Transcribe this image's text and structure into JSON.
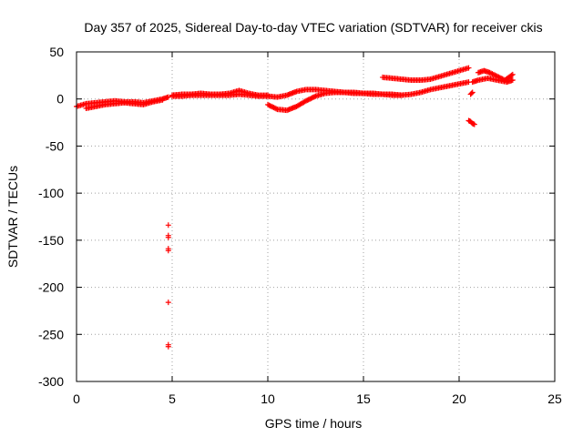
{
  "chart_data": {
    "type": "scatter",
    "title": "Day 357 of 2025, Sidereal Day-to-day VTEC variation (SDTVAR) for receiver ckis",
    "xlabel": "GPS time / hours",
    "ylabel": "SDTVAR / TECUs",
    "xlim": [
      0,
      25
    ],
    "ylim": [
      -300,
      50
    ],
    "xticks": [
      0,
      5,
      10,
      15,
      20,
      25
    ],
    "yticks": [
      50,
      0,
      -50,
      -100,
      -150,
      -200,
      -250,
      -300
    ],
    "xtick_labels": [
      "0",
      "5",
      "10",
      "15",
      "20",
      "25"
    ],
    "ytick_labels": [
      "50",
      "0",
      "-50",
      "-100",
      "-150",
      "-200",
      "-250",
      "-300"
    ],
    "grid": true,
    "marker": "+",
    "series": [
      {
        "name": "SDTVAR",
        "color": "#ff0000",
        "segments": [
          {
            "x": [
              0.0,
              0.5,
              1.0,
              1.5,
              2.0,
              2.5,
              3.0,
              3.5,
              4.0,
              4.5,
              4.8
            ],
            "y": [
              -8,
              -5,
              -4,
              -3,
              -2,
              -3,
              -3,
              -4,
              -2,
              0,
              2
            ]
          },
          {
            "x": [
              0.5,
              1.0,
              1.5,
              2.0,
              2.5,
              3.0,
              3.5,
              4.0,
              4.5
            ],
            "y": [
              -10,
              -8,
              -6,
              -5,
              -4,
              -5,
              -6,
              -3,
              -1
            ]
          },
          {
            "x": [
              5.0,
              5.5,
              6.0,
              6.5,
              7.0,
              7.5,
              8.0,
              8.5,
              9.0,
              9.5,
              10.0
            ],
            "y": [
              4,
              5,
              5,
              6,
              5,
              5,
              6,
              9,
              6,
              4,
              4
            ]
          },
          {
            "x": [
              5.0,
              5.5,
              6.0,
              6.5,
              7.0,
              7.5,
              8.0,
              8.5,
              9.0,
              9.5,
              10.0
            ],
            "y": [
              3,
              3,
              4,
              4,
              4,
              4,
              4,
              5,
              4,
              3,
              3
            ]
          },
          {
            "x": [
              10.0,
              10.5,
              11.0,
              11.5,
              12.0,
              12.5,
              13.0,
              13.5,
              14.0,
              14.5,
              15.0,
              15.5,
              16.0,
              16.5,
              17.0,
              17.5,
              18.0,
              18.5,
              19.0,
              19.5,
              20.0,
              20.5
            ],
            "y": [
              3,
              2,
              4,
              8,
              10,
              10,
              9,
              8,
              7,
              7,
              6,
              6,
              5,
              5,
              4,
              5,
              7,
              10,
              12,
              14,
              16,
              18
            ]
          },
          {
            "x": [
              10.0,
              10.5,
              11.0,
              11.5,
              12.0,
              12.5,
              13.0,
              13.5,
              14.0,
              14.5,
              15.0,
              15.5,
              16.0,
              16.5,
              17.0
            ],
            "y": [
              -6,
              -11,
              -12,
              -8,
              -2,
              3,
              6,
              7,
              7,
              6,
              6,
              5,
              5,
              4,
              4
            ]
          },
          {
            "x": [
              16.0,
              16.5,
              17.0,
              17.5,
              18.0,
              18.5,
              19.0,
              19.5,
              20.0,
              20.5
            ],
            "y": [
              23,
              22,
              21,
              20,
              20,
              21,
              24,
              27,
              30,
              33
            ]
          },
          {
            "x": [
              20.7,
              21.0,
              21.5,
              22.0,
              22.5,
              22.8
            ],
            "y": [
              18,
              20,
              22,
              20,
              18,
              20
            ]
          },
          {
            "x": [
              21.0,
              21.3,
              21.6,
              22.0,
              22.4,
              22.8
            ],
            "y": [
              28,
              30,
              28,
              24,
              20,
              26
            ]
          },
          {
            "x": [
              20.6,
              20.7
            ],
            "y": [
              5,
              7
            ]
          },
          {
            "x": [
              20.5,
              20.6,
              20.7,
              20.8
            ],
            "y": [
              -23,
              -24,
              -26,
              -27
            ]
          },
          {
            "x": [
              4.8,
              4.8,
              4.8,
              4.8,
              4.8,
              4.8,
              4.8,
              4.8
            ],
            "y": [
              -134,
              -145,
              -147,
              -159,
              -161,
              -216,
              -261,
              -263
            ]
          }
        ]
      }
    ]
  }
}
